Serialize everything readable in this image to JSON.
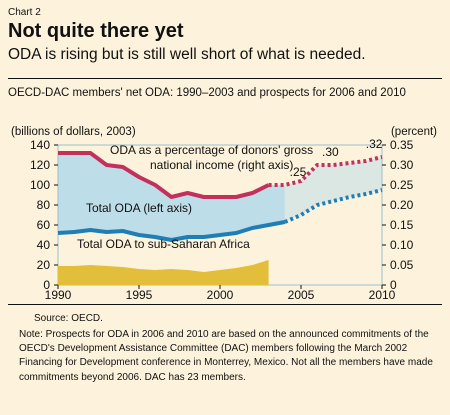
{
  "header": {
    "chart_label": "Chart 2",
    "title": "Not quite there yet",
    "subtitle": "ODA is rising but is still well short of what is needed.",
    "series_title": "OECD-DAC members' net ODA: 1990–2003 and prospects for 2006 and 2010"
  },
  "footer": {
    "source": "Source: OECD.",
    "note": "Note: Prospects for ODA in 2006 and 2010 are based on the announced commitments of the OECD's Development Assistance Committee (DAC) members following the March 2002 Financing for Development conference in Monterrey, Mexico. Not all the members have made commitments beyond 2006. DAC has 23 members."
  },
  "chart_data": {
    "type": "line",
    "left_axis_label": "(billions of dollars, 2003)",
    "right_axis_label": "(percent)",
    "xlim": [
      1990,
      2010
    ],
    "ylim_left": [
      0,
      140
    ],
    "ylim_right": [
      0,
      0.35
    ],
    "x_ticks": [
      1990,
      1995,
      2000,
      2005,
      2010
    ],
    "y_ticks_left": [
      0,
      20,
      40,
      60,
      80,
      100,
      120,
      140
    ],
    "y_ticks_right": [
      "0",
      "0.05",
      "0.10",
      "0.15",
      "0.20",
      "0.25",
      "0.30",
      "0.35"
    ],
    "colors": {
      "oda_pct": "#c3305c",
      "total_oda": "#1f7fb5",
      "ssa_oda": "#e3be3b",
      "fill": "#bddde8",
      "frame": "#9cc0cf"
    },
    "series": [
      {
        "key": "oda_pct",
        "name": "ODA as a percentage of donors' gross national income (right axis)",
        "axis": "right",
        "actual": {
          "x": [
            1990,
            1991,
            1992,
            1993,
            1994,
            1995,
            1996,
            1997,
            1998,
            1999,
            2000,
            2001,
            2002,
            2003
          ],
          "y": [
            0.33,
            0.33,
            0.33,
            0.3,
            0.295,
            0.27,
            0.25,
            0.22,
            0.23,
            0.22,
            0.22,
            0.22,
            0.23,
            0.25
          ]
        },
        "projection": {
          "x": [
            2003,
            2004,
            2005,
            2006,
            2007,
            2008,
            2009,
            2010
          ],
          "y": [
            0.25,
            0.25,
            0.26,
            0.3,
            0.3,
            0.305,
            0.31,
            0.32
          ]
        }
      },
      {
        "key": "total_oda",
        "name": "Total ODA (left axis)",
        "axis": "left",
        "actual": {
          "x": [
            1990,
            1991,
            1992,
            1993,
            1994,
            1995,
            1996,
            1997,
            1998,
            1999,
            2000,
            2001,
            2002,
            2003,
            2004
          ],
          "y": [
            52,
            53,
            55,
            53,
            54,
            50,
            48,
            45,
            48,
            48,
            50,
            52,
            57,
            60,
            63
          ]
        },
        "projection": {
          "x": [
            2004,
            2005,
            2006,
            2007,
            2008,
            2009,
            2010
          ],
          "y": [
            63,
            70,
            80,
            84,
            88,
            91,
            95
          ]
        }
      },
      {
        "key": "ssa_oda",
        "name": "Total ODA to sub-Saharan Africa",
        "axis": "left",
        "actual": {
          "x": [
            1990,
            1991,
            1992,
            1993,
            1994,
            1995,
            1996,
            1997,
            1998,
            1999,
            2000,
            2001,
            2002,
            2003
          ],
          "y": [
            19,
            19,
            20,
            19,
            18,
            16,
            15,
            16,
            15,
            13,
            15,
            17,
            20,
            25
          ]
        }
      }
    ],
    "annotations": [
      {
        "text": ".25",
        "x": 2004.3,
        "axis": "right",
        "y": 0.25
      },
      {
        "text": ".30",
        "x": 2006.3,
        "axis": "right",
        "y": 0.3
      },
      {
        "text": ".32",
        "x": 2009.0,
        "axis": "right",
        "y": 0.32
      }
    ]
  }
}
